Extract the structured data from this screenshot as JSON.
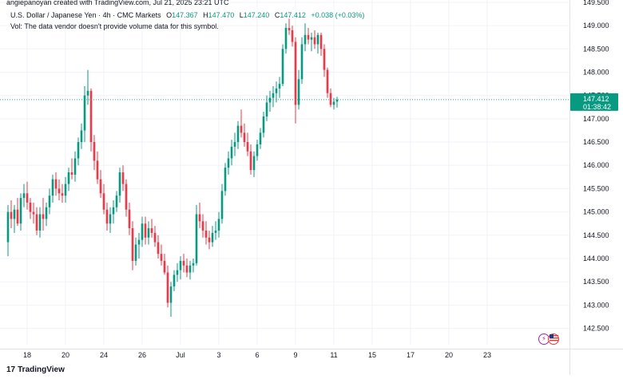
{
  "attribution": "angiepanoyan created with TradingView.com, Jul 21, 2025 23:21 UTC",
  "header": {
    "symbol": "U.S. Dollar / Japanese Yen · 4h · CMC Markets",
    "o_label": "O",
    "o_value": "147.367",
    "h_label": "H",
    "h_value": "147.470",
    "l_label": "L",
    "l_value": "147.240",
    "c_label": "C",
    "c_value": "147.412",
    "change": "+0.038 (+0.03%)"
  },
  "vol_text": "Vol: The data vendor doesn't provide volume data for this symbol.",
  "price_badge": {
    "price": "147.412",
    "countdown": "01:38:42"
  },
  "logo_text": "TradingView",
  "logo_mark": "17",
  "colors": {
    "up": "#089981",
    "down": "#f23645",
    "grid": "#f0f3fa",
    "price_line": "#26a69a",
    "badge": "#089981"
  },
  "chart_data": {
    "type": "candlestick",
    "title": "",
    "xlabel": "",
    "ylabel": "",
    "ylim": [
      142.15,
      149.55
    ],
    "y_ticks": [
      142.5,
      143.0,
      143.5,
      144.0,
      144.5,
      145.0,
      145.5,
      146.0,
      146.5,
      147.0,
      147.5,
      148.0,
      148.5,
      149.0,
      149.5
    ],
    "y_tick_labels": [
      "142.500",
      "143.000",
      "143.500",
      "144.000",
      "144.500",
      "145.000",
      "145.500",
      "146.000",
      "146.500",
      "147.000",
      "147.500",
      "148.000",
      "148.500",
      "149.000",
      "149.500"
    ],
    "x_tick_labels": [
      "18",
      "20",
      "24",
      "26",
      "Jul",
      "3",
      "6",
      "9",
      "11",
      "15",
      "17",
      "20",
      "23"
    ],
    "x_tick_index": [
      6,
      18,
      30,
      42,
      54,
      66,
      78,
      90,
      102,
      114,
      126,
      138,
      150
    ],
    "grid": true,
    "last_price": 147.412,
    "candles": [
      [
        144.35,
        145.15,
        144.05,
        145.0
      ],
      [
        145.0,
        145.25,
        144.65,
        144.85
      ],
      [
        144.85,
        145.15,
        144.55,
        145.05
      ],
      [
        145.05,
        145.3,
        144.7,
        144.75
      ],
      [
        144.75,
        145.4,
        144.6,
        145.3
      ],
      [
        145.3,
        145.6,
        145.1,
        145.4
      ],
      [
        145.4,
        145.65,
        145.05,
        145.2
      ],
      [
        145.2,
        145.3,
        144.85,
        145.0
      ],
      [
        145.0,
        145.2,
        144.75,
        144.95
      ],
      [
        144.95,
        145.1,
        144.5,
        144.6
      ],
      [
        144.6,
        145.1,
        144.45,
        144.95
      ],
      [
        144.95,
        145.3,
        144.6,
        144.85
      ],
      [
        144.85,
        145.2,
        144.7,
        145.1
      ],
      [
        145.1,
        145.5,
        144.95,
        145.35
      ],
      [
        145.35,
        145.8,
        145.2,
        145.7
      ],
      [
        145.7,
        145.85,
        145.35,
        145.5
      ],
      [
        145.5,
        145.7,
        145.25,
        145.4
      ],
      [
        145.4,
        145.6,
        145.2,
        145.35
      ],
      [
        145.35,
        145.75,
        145.2,
        145.6
      ],
      [
        145.6,
        145.95,
        145.45,
        145.85
      ],
      [
        145.85,
        146.15,
        145.7,
        145.8
      ],
      [
        145.8,
        146.3,
        145.65,
        146.15
      ],
      [
        146.15,
        146.6,
        146.0,
        146.5
      ],
      [
        146.5,
        146.9,
        146.35,
        146.75
      ],
      [
        146.75,
        147.7,
        146.5,
        147.5
      ],
      [
        147.5,
        148.05,
        147.3,
        147.6
      ],
      [
        147.6,
        147.65,
        146.3,
        146.5
      ],
      [
        146.5,
        146.65,
        145.9,
        146.1
      ],
      [
        146.1,
        146.3,
        145.6,
        145.7
      ],
      [
        145.7,
        145.9,
        145.3,
        145.4
      ],
      [
        145.4,
        145.6,
        144.95,
        145.05
      ],
      [
        145.05,
        145.2,
        144.6,
        144.75
      ],
      [
        144.75,
        145.1,
        144.55,
        144.95
      ],
      [
        144.95,
        145.25,
        144.75,
        145.1
      ],
      [
        145.1,
        145.45,
        145.0,
        145.35
      ],
      [
        145.35,
        145.95,
        145.2,
        145.85
      ],
      [
        145.85,
        146.0,
        145.45,
        145.6
      ],
      [
        145.6,
        145.7,
        144.9,
        145.05
      ],
      [
        145.05,
        145.2,
        144.5,
        144.65
      ],
      [
        144.65,
        144.8,
        143.75,
        143.95
      ],
      [
        143.95,
        144.45,
        143.85,
        144.3
      ],
      [
        144.3,
        144.55,
        144.0,
        144.4
      ],
      [
        144.4,
        144.9,
        144.25,
        144.75
      ],
      [
        144.75,
        144.9,
        144.3,
        144.45
      ],
      [
        144.45,
        144.8,
        144.3,
        144.65
      ],
      [
        144.65,
        144.85,
        144.45,
        144.55
      ],
      [
        144.55,
        144.7,
        144.25,
        144.35
      ],
      [
        144.35,
        144.5,
        144.0,
        144.1
      ],
      [
        144.1,
        144.3,
        143.85,
        143.95
      ],
      [
        143.95,
        144.1,
        143.65,
        143.7
      ],
      [
        143.7,
        143.85,
        142.95,
        143.05
      ],
      [
        143.05,
        143.5,
        142.75,
        143.4
      ],
      [
        143.4,
        143.75,
        143.3,
        143.65
      ],
      [
        143.65,
        143.9,
        143.5,
        143.75
      ],
      [
        143.75,
        144.05,
        143.55,
        143.95
      ],
      [
        143.95,
        144.1,
        143.7,
        143.85
      ],
      [
        143.85,
        144.0,
        143.6,
        143.7
      ],
      [
        143.7,
        143.95,
        143.55,
        143.85
      ],
      [
        143.85,
        144.0,
        143.7,
        143.9
      ],
      [
        143.9,
        145.15,
        143.85,
        144.95
      ],
      [
        144.95,
        145.2,
        144.65,
        144.8
      ],
      [
        144.8,
        144.95,
        144.45,
        144.6
      ],
      [
        144.6,
        144.8,
        144.3,
        144.45
      ],
      [
        144.45,
        144.6,
        144.2,
        144.35
      ],
      [
        144.35,
        144.7,
        144.25,
        144.55
      ],
      [
        144.55,
        144.8,
        144.4,
        144.6
      ],
      [
        144.6,
        145.0,
        144.45,
        144.85
      ],
      [
        144.85,
        145.6,
        144.75,
        145.45
      ],
      [
        145.45,
        146.05,
        145.35,
        145.95
      ],
      [
        145.95,
        146.3,
        145.8,
        146.15
      ],
      [
        146.15,
        146.55,
        146.0,
        146.4
      ],
      [
        146.4,
        146.7,
        146.2,
        146.5
      ],
      [
        146.5,
        146.95,
        146.35,
        146.85
      ],
      [
        146.85,
        147.2,
        146.6,
        146.7
      ],
      [
        146.7,
        146.9,
        146.4,
        146.5
      ],
      [
        146.5,
        146.7,
        146.2,
        146.3
      ],
      [
        146.3,
        146.45,
        145.8,
        145.9
      ],
      [
        145.9,
        146.3,
        145.75,
        146.2
      ],
      [
        146.2,
        146.55,
        146.1,
        146.45
      ],
      [
        146.45,
        146.8,
        146.35,
        146.7
      ],
      [
        146.7,
        147.15,
        146.6,
        147.05
      ],
      [
        147.05,
        147.5,
        146.95,
        147.35
      ],
      [
        147.35,
        147.6,
        147.15,
        147.45
      ],
      [
        147.45,
        147.7,
        147.25,
        147.55
      ],
      [
        147.55,
        147.8,
        147.35,
        147.65
      ],
      [
        147.65,
        147.9,
        147.45,
        147.75
      ],
      [
        147.75,
        148.6,
        147.7,
        148.5
      ],
      [
        148.5,
        149.05,
        148.4,
        148.95
      ],
      [
        148.95,
        149.15,
        148.8,
        148.9
      ],
      [
        148.9,
        149.0,
        148.55,
        148.65
      ],
      [
        148.65,
        148.75,
        146.9,
        147.3
      ],
      [
        147.3,
        148.05,
        147.2,
        147.85
      ],
      [
        147.85,
        148.75,
        147.75,
        148.6
      ],
      [
        148.6,
        149.05,
        148.45,
        148.8
      ],
      [
        148.8,
        148.95,
        148.6,
        148.7
      ],
      [
        148.7,
        148.85,
        148.45,
        148.75
      ],
      [
        148.75,
        148.9,
        148.5,
        148.6
      ],
      [
        148.6,
        148.85,
        148.4,
        148.8
      ],
      [
        148.8,
        148.85,
        148.35,
        148.5
      ],
      [
        148.5,
        148.6,
        147.9,
        148.05
      ],
      [
        148.05,
        148.1,
        147.45,
        147.55
      ],
      [
        147.55,
        147.65,
        147.25,
        147.3
      ],
      [
        147.3,
        147.45,
        147.2,
        147.367
      ],
      [
        147.367,
        147.47,
        147.24,
        147.412
      ]
    ]
  }
}
